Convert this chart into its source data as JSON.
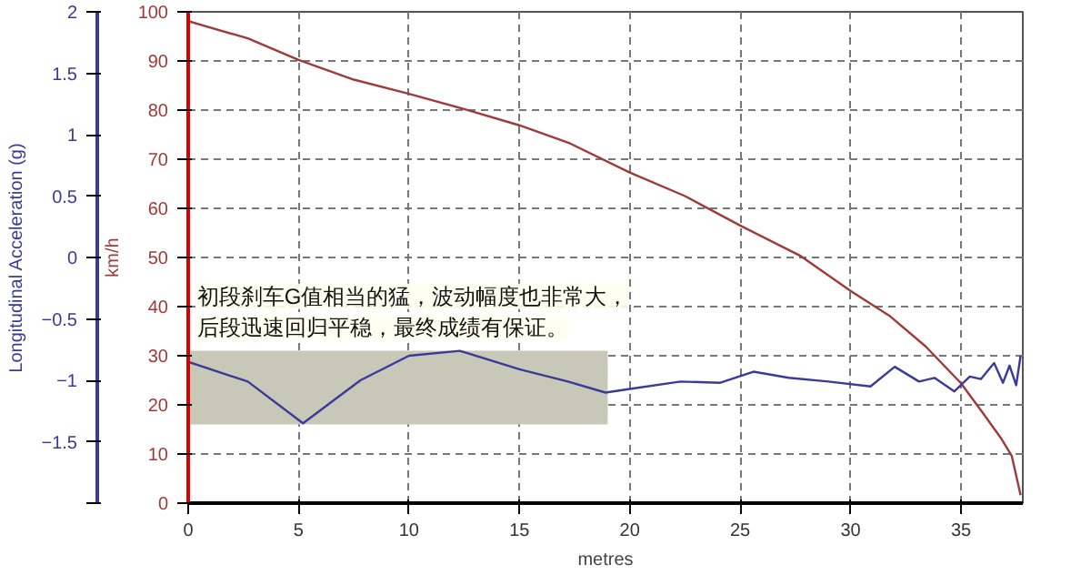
{
  "chart_data": {
    "type": "line",
    "xlabel": "metres",
    "ylabel": "km/h",
    "y2label": "Longitudinal Acceleration (g)",
    "annotations": [
      "初段刹车G值相当的猛，波动幅度也非常大，",
      "后段迅速回归平稳，最终成绩有保证。"
    ],
    "bands": [
      {
        "axis": "y",
        "from": 16,
        "to": 31,
        "color": "#c8c8b8"
      }
    ],
    "series": [
      {
        "color": "#a03a3a",
        "x": [
          0,
          2.7,
          5,
          7.5,
          10,
          12.5,
          15,
          17.3,
          20,
          22.5,
          25,
          27.7,
          30,
          31.8,
          33.4,
          35,
          36,
          36.8,
          37.3,
          37.7
        ],
        "values": [
          98.1,
          94.6,
          90.2,
          86.2,
          83.3,
          80.2,
          76.9,
          73.2,
          67.3,
          62.5,
          56.5,
          50.4,
          43.2,
          38,
          31.9,
          24.4,
          18.3,
          13.3,
          9.6,
          1.6
        ]
      },
      {
        "color": "#3a3a9a",
        "axis": "y2",
        "x": [
          0,
          2.7,
          5.2,
          7.8,
          10,
          12.3,
          15,
          17.2,
          18.9,
          20,
          22.3,
          24.1,
          25.6,
          27.2,
          29,
          30.9,
          32,
          33.1,
          33.8,
          34.7,
          35.4,
          35.9,
          36.5,
          36.9,
          37.2,
          37.5,
          37.7
        ],
        "values": [
          -0.85,
          -1.01,
          -1.35,
          -1.0,
          -0.8,
          -0.76,
          -0.91,
          -1.01,
          -1.1,
          -1.07,
          -1.01,
          -1.02,
          -0.93,
          -0.98,
          -1.01,
          -1.05,
          -0.89,
          -1.01,
          -0.98,
          -1.09,
          -0.97,
          -0.99,
          -0.86,
          -1.02,
          -0.88,
          -1.04,
          -0.8
        ]
      }
    ],
    "xlim": [
      0,
      37.8
    ],
    "xticks": [
      0,
      5,
      10,
      15,
      20,
      25,
      30,
      35
    ],
    "ylim": [
      0,
      100
    ],
    "yticks": [
      0,
      10,
      20,
      30,
      40,
      50,
      60,
      70,
      80,
      90,
      100
    ],
    "y2lim": [
      -2,
      2
    ],
    "y2ticks": [
      {
        "value": -2,
        "label": null
      },
      -1.5,
      -1,
      -0.5,
      0,
      0.5,
      1,
      1.5,
      2
    ],
    "grid": true,
    "line_style": "solid"
  }
}
